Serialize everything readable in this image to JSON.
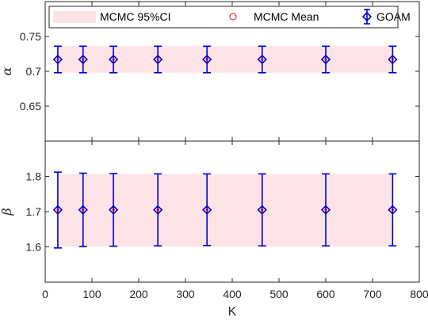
{
  "chart_data": {
    "type": "scatter",
    "x": [
      27,
      81,
      146,
      241,
      346,
      464,
      600,
      743
    ],
    "xlabel": "K",
    "xlim": [
      0,
      800
    ],
    "xticks": [
      0,
      100,
      200,
      300,
      400,
      500,
      600,
      700,
      800
    ],
    "legend": {
      "placement": "top",
      "entries": [
        "MCMC 95%CI",
        "MCMC Mean",
        "GOAM"
      ]
    },
    "panels": [
      {
        "ylabel": "α",
        "ylim": [
          0.6,
          0.8
        ],
        "yticks": [
          0.65,
          0.7,
          0.75
        ],
        "ytick_labels": [
          "0.65",
          "0.7",
          "0.75"
        ],
        "ci_band": [
          0.698,
          0.736
        ],
        "series": [
          {
            "name": "MCMC Mean",
            "values": [
              0.717,
              0.717,
              0.717,
              0.717,
              0.717,
              0.717,
              0.717,
              0.717
            ]
          },
          {
            "name": "GOAM",
            "values": [
              0.717,
              0.717,
              0.717,
              0.717,
              0.717,
              0.717,
              0.717,
              0.717
            ],
            "lower": [
              0.698,
              0.698,
              0.698,
              0.698,
              0.698,
              0.698,
              0.698,
              0.698
            ],
            "upper": [
              0.736,
              0.736,
              0.736,
              0.736,
              0.736,
              0.736,
              0.736,
              0.736
            ]
          }
        ]
      },
      {
        "ylabel": "β",
        "ylim": [
          1.5,
          1.9
        ],
        "yticks": [
          1.6,
          1.7,
          1.8
        ],
        "ytick_labels": [
          "1.6",
          "1.7",
          "1.8"
        ],
        "ci_band": [
          1.601,
          1.806
        ],
        "series": [
          {
            "name": "MCMC Mean",
            "values": [
              1.705,
              1.705,
              1.705,
              1.705,
              1.705,
              1.705,
              1.705,
              1.705
            ]
          },
          {
            "name": "GOAM",
            "values": [
              1.705,
              1.705,
              1.705,
              1.705,
              1.705,
              1.705,
              1.705,
              1.705
            ],
            "lower": [
              1.597,
              1.601,
              1.602,
              1.603,
              1.604,
              1.603,
              1.603,
              1.603
            ],
            "upper": [
              1.812,
              1.809,
              1.808,
              1.807,
              1.807,
              1.807,
              1.807,
              1.807
            ]
          }
        ]
      }
    ],
    "colors": {
      "band": "#fce4e6",
      "goam": "#0000cc",
      "mean": "#e00000",
      "axis": "#262626"
    }
  }
}
